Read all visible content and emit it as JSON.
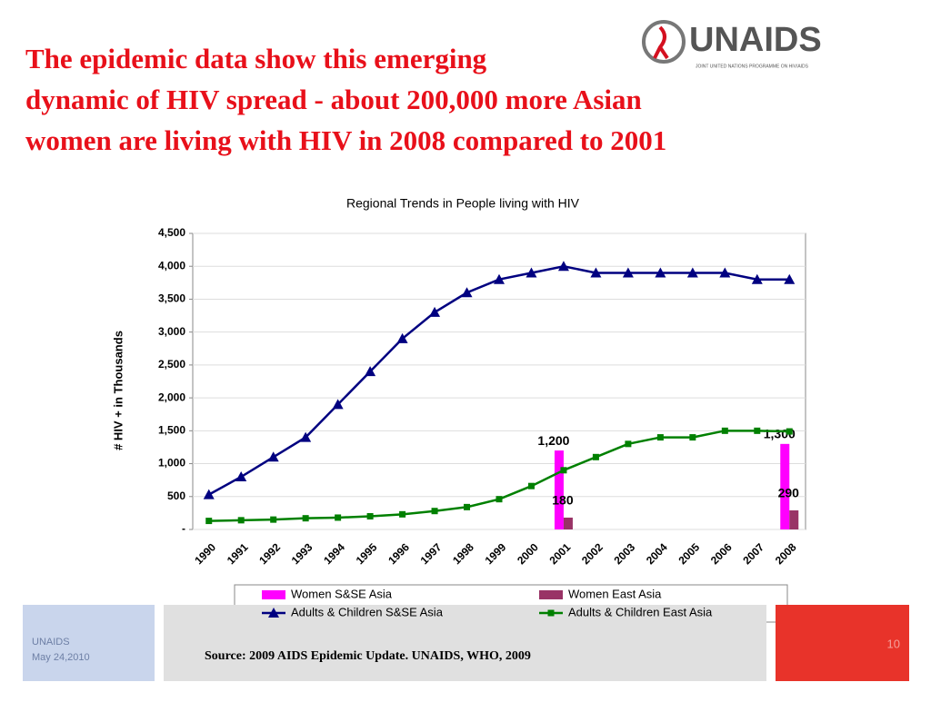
{
  "slide": {
    "title_lines": [
      "The epidemic data show this emerging",
      "dynamic of HIV spread - about 200,000 more Asian",
      "women are living with HIV in 2008 compared to 2001"
    ],
    "logo": "UNAIDS",
    "logo_tagline": "JOINT UNITED NATIONS PROGRAMME ON HIV/AIDS",
    "footer_org": "UNAIDS",
    "footer_date": "May 24,2010",
    "source": "Source: 2009  AIDS Epidemic Update. UNAIDS, WHO, 2009",
    "page_number": "10"
  },
  "chart_data": {
    "type": "combo",
    "title": "Regional Trends in People living with HIV",
    "y_label": "# HIV + in Thousands",
    "categories": [
      "1990",
      "1991",
      "1992",
      "1993",
      "1994",
      "1995",
      "1996",
      "1997",
      "1998",
      "1999",
      "2000",
      "2001",
      "2002",
      "2003",
      "2004",
      "2005",
      "2006",
      "2007",
      "2008"
    ],
    "ylim": [
      0,
      4500
    ],
    "yticks": [
      {
        "value": 0,
        "label": "-"
      },
      500,
      {
        "value": 1000,
        "label": "1,000"
      },
      {
        "value": 1500,
        "label": "1,500"
      },
      {
        "value": 2000,
        "label": "2,000"
      },
      {
        "value": 2500,
        "label": "2,500"
      },
      {
        "value": 3000,
        "label": "3,000"
      },
      {
        "value": 3500,
        "label": "3,500"
      },
      {
        "value": 4000,
        "label": "4,000"
      },
      {
        "value": 4500,
        "label": "4,500"
      }
    ],
    "grid": true,
    "series": [
      {
        "name": "Women S&SE Asia",
        "kind": "bar",
        "color": "#ff00ff",
        "values": [
          null,
          null,
          null,
          null,
          null,
          null,
          null,
          null,
          null,
          null,
          null,
          1200,
          null,
          null,
          null,
          null,
          null,
          null,
          1300
        ],
        "value_labels": [
          null,
          null,
          null,
          null,
          null,
          null,
          null,
          null,
          null,
          null,
          null,
          "1,200",
          null,
          null,
          null,
          null,
          null,
          null,
          "1,300"
        ]
      },
      {
        "name": "Women East Asia",
        "kind": "bar",
        "color": "#993366",
        "values": [
          null,
          null,
          null,
          null,
          null,
          null,
          null,
          null,
          null,
          null,
          null,
          180,
          null,
          null,
          null,
          null,
          null,
          null,
          290
        ]
      },
      {
        "name": "Adults & Children S&SE Asia",
        "kind": "line",
        "marker": "triangle",
        "color": "#000080",
        "values": [
          530,
          800,
          1100,
          1400,
          1900,
          2400,
          2900,
          3300,
          3600,
          3800,
          3900,
          4000,
          3900,
          3900,
          3900,
          3900,
          3900,
          3800,
          3800
        ]
      },
      {
        "name": "Adults & Children East Asia",
        "kind": "line",
        "marker": "square",
        "color": "#008000",
        "values": [
          130,
          140,
          150,
          170,
          180,
          200,
          230,
          280,
          340,
          460,
          660,
          900,
          1100,
          1300,
          1400,
          1400,
          1500,
          1500,
          1490
        ]
      }
    ]
  }
}
